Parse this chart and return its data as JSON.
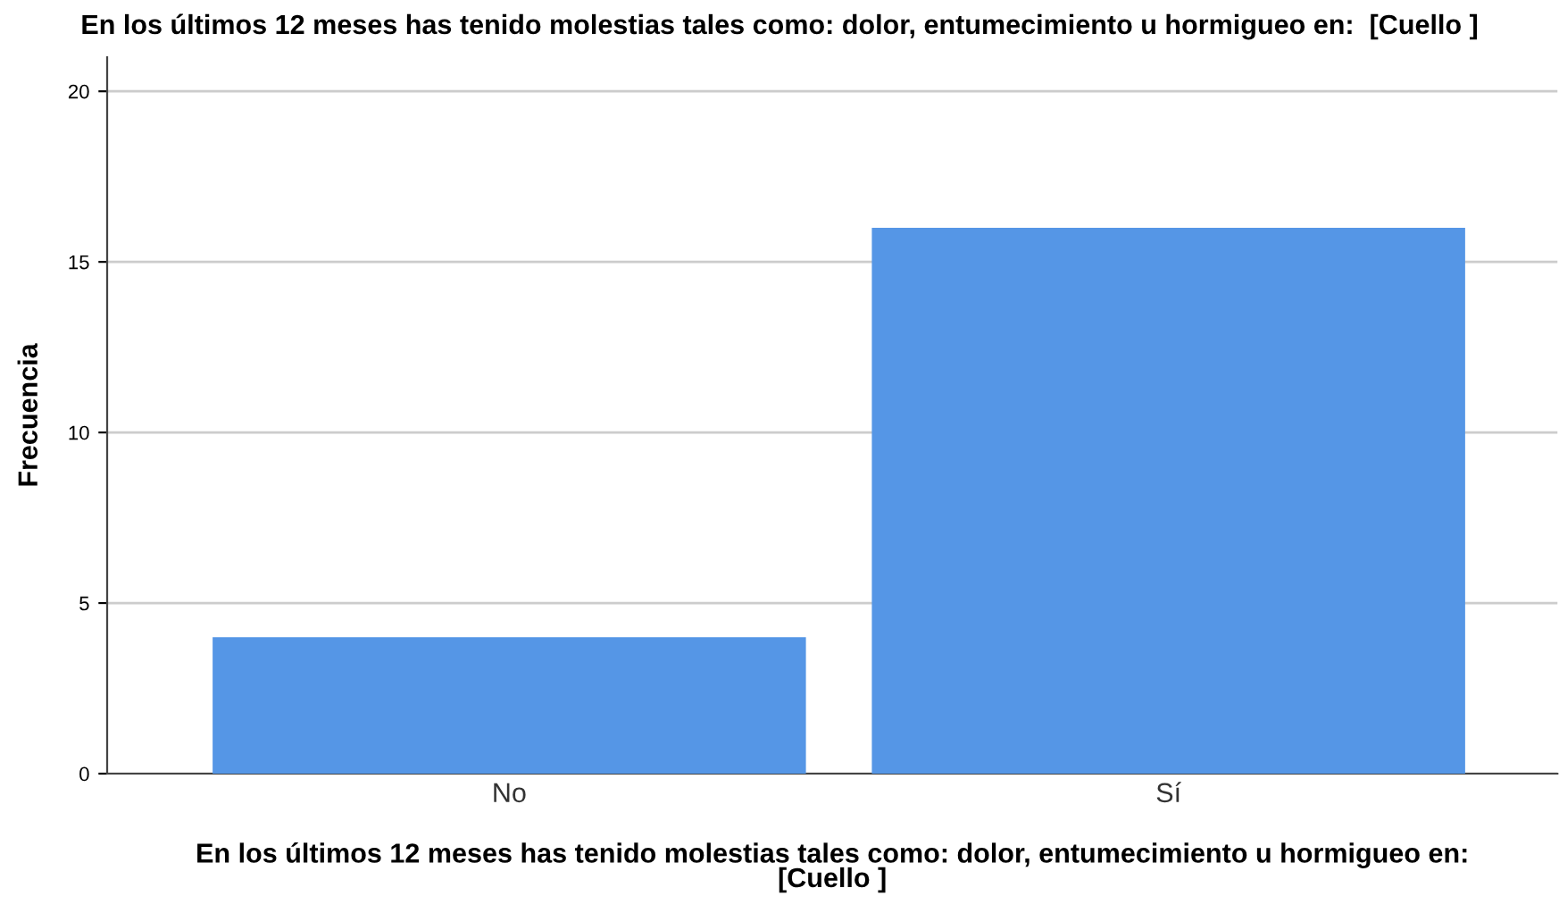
{
  "chart_data": {
    "type": "bar",
    "title": "En los últimos 12 meses has tenido molestias tales como: dolor, entumecimiento u hormigueo en:  [Cuello ]",
    "xlabel": "En los últimos 12 meses has tenido molestias tales como: dolor, entumecimiento u hormigueo en:\n[Cuello ]",
    "ylabel": "Frecuencia",
    "categories": [
      "No",
      "Sí"
    ],
    "values": [
      4,
      16
    ],
    "color": "#5596e6",
    "ylim": [
      0,
      21
    ],
    "yticks": [
      0,
      5,
      10,
      15,
      20
    ],
    "grid": "y"
  }
}
